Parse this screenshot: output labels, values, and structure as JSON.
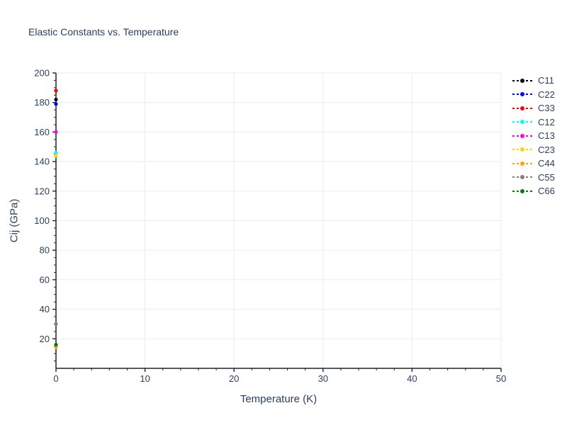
{
  "chart_data": {
    "type": "scatter",
    "title": "Elastic Constants vs. Temperature",
    "xlabel": "Temperature (K)",
    "ylabel": "Cij (GPa)",
    "xlim": [
      0,
      50
    ],
    "ylim": [
      0,
      200
    ],
    "x_ticks": [
      0,
      10,
      20,
      30,
      40,
      50
    ],
    "x_minor_step": 2,
    "y_ticks": [
      20,
      40,
      60,
      80,
      100,
      120,
      140,
      160,
      180,
      200
    ],
    "y_minor_step": 5,
    "grid": true,
    "legend_position": "right",
    "marker_style": "dashed-line-with-dot",
    "series": [
      {
        "name": "C11",
        "color": "#000000",
        "x": [
          0
        ],
        "y": [
          182
        ]
      },
      {
        "name": "C22",
        "color": "#0000ff",
        "x": [
          0
        ],
        "y": [
          179
        ]
      },
      {
        "name": "C33",
        "color": "#ff0000",
        "x": [
          0
        ],
        "y": [
          188
        ]
      },
      {
        "name": "C12",
        "color": "#00ffff",
        "x": [
          0
        ],
        "y": [
          146
        ]
      },
      {
        "name": "C13",
        "color": "#ff00ff",
        "x": [
          0
        ],
        "y": [
          160
        ]
      },
      {
        "name": "C23",
        "color": "#ffd700",
        "x": [
          0
        ],
        "y": [
          144
        ]
      },
      {
        "name": "C44",
        "color": "#ffa500",
        "x": [
          0
        ],
        "y": [
          14.5
        ]
      },
      {
        "name": "C55",
        "color": "#808080",
        "x": [
          0
        ],
        "y": [
          30
        ]
      },
      {
        "name": "C66",
        "color": "#008000",
        "x": [
          0
        ],
        "y": [
          16
        ]
      }
    ],
    "colors": {
      "text": "#2a3f5f",
      "grid": "#ebebeb",
      "axis": "#242424",
      "background": "#ffffff"
    }
  }
}
